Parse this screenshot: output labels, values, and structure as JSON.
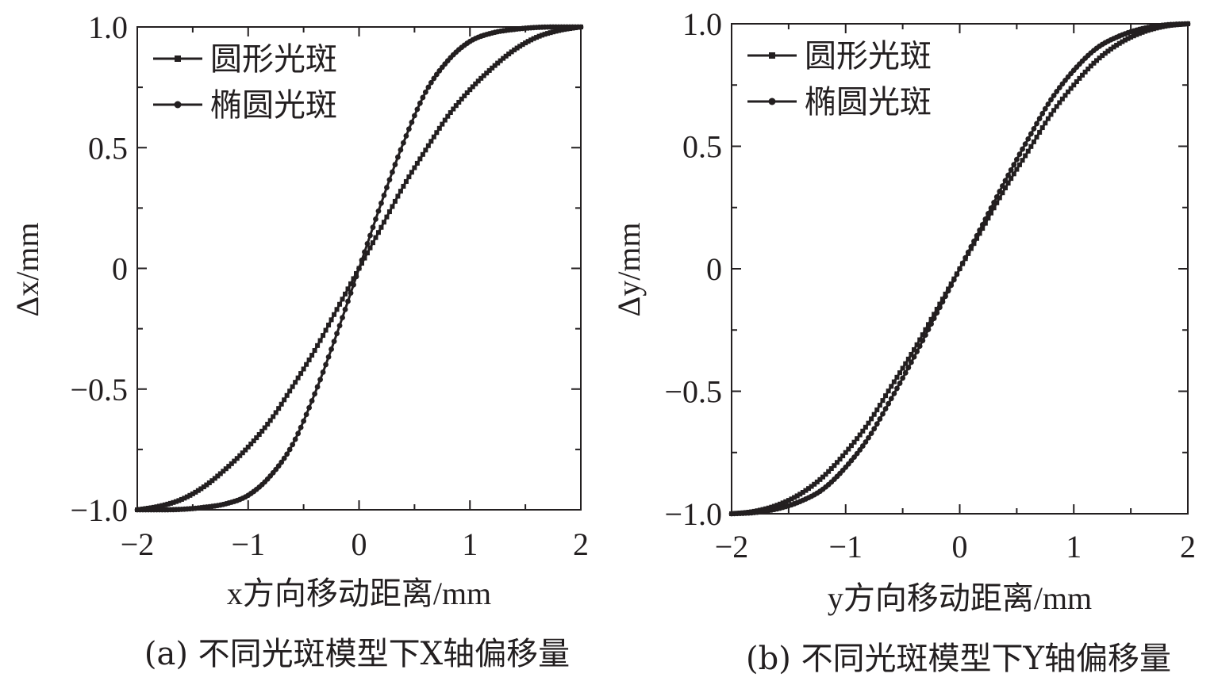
{
  "chart_data": [
    {
      "type": "line",
      "caption": "(a) 不同光斑模型下X轴偏移量",
      "xlabel": "x方向移动距离/mm",
      "ylabel": "Δx/mm",
      "xlim": [
        -2,
        2
      ],
      "ylim": [
        -1.0,
        1.0
      ],
      "xticks": [
        -2,
        -1,
        0,
        1,
        2
      ],
      "xtick_labels": [
        "−2",
        "−1",
        "0",
        "1",
        "2"
      ],
      "yticks": [
        -1.0,
        -0.5,
        0,
        0.5,
        1.0
      ],
      "ytick_labels": [
        "−1.0",
        "−0.5",
        "0",
        "0.5",
        "1.0"
      ],
      "grid": false,
      "legend_position": "top-left",
      "line_color": "#231f20",
      "series": [
        {
          "name": "圆形光斑",
          "marker": "square",
          "x": [
            -2.0,
            -1.8,
            -1.6,
            -1.4,
            -1.2,
            -1.0,
            -0.8,
            -0.6,
            -0.4,
            -0.2,
            0.0,
            0.2,
            0.4,
            0.6,
            0.8,
            1.0,
            1.2,
            1.4,
            1.6,
            1.8,
            2.0
          ],
          "values": [
            -1.0,
            -0.985,
            -0.957,
            -0.905,
            -0.83,
            -0.74,
            -0.63,
            -0.49,
            -0.34,
            -0.17,
            0.0,
            0.17,
            0.34,
            0.49,
            0.63,
            0.74,
            0.83,
            0.905,
            0.957,
            0.985,
            1.0
          ]
        },
        {
          "name": "椭圆光斑",
          "marker": "circle",
          "x": [
            -2.0,
            -1.8,
            -1.6,
            -1.4,
            -1.2,
            -1.0,
            -0.8,
            -0.6,
            -0.4,
            -0.2,
            0.0,
            0.2,
            0.4,
            0.6,
            0.8,
            1.0,
            1.2,
            1.4,
            1.6,
            1.8,
            2.0
          ],
          "values": [
            -1.0,
            -1.0,
            -0.998,
            -0.99,
            -0.975,
            -0.94,
            -0.86,
            -0.73,
            -0.52,
            -0.27,
            0.0,
            0.27,
            0.52,
            0.73,
            0.86,
            0.94,
            0.975,
            0.99,
            0.998,
            1.0,
            1.0
          ]
        }
      ]
    },
    {
      "type": "line",
      "caption": "(b) 不同光斑模型下Y轴偏移量",
      "xlabel": "y方向移动距离/mm",
      "ylabel": "Δy/mm",
      "xlim": [
        -2,
        2
      ],
      "ylim": [
        -1.0,
        1.0
      ],
      "xticks": [
        -2,
        -1,
        0,
        1,
        2
      ],
      "xtick_labels": [
        "−2",
        "−1",
        "0",
        "1",
        "2"
      ],
      "yticks": [
        -1.0,
        -0.5,
        0,
        0.5,
        1.0
      ],
      "ytick_labels": [
        "−1.0",
        "−0.5",
        "0",
        "0.5",
        "1.0"
      ],
      "grid": false,
      "legend_position": "top-left",
      "line_color": "#231f20",
      "series": [
        {
          "name": "圆形光斑",
          "marker": "square",
          "x": [
            -2.0,
            -1.8,
            -1.6,
            -1.4,
            -1.2,
            -1.0,
            -0.8,
            -0.6,
            -0.4,
            -0.2,
            0.0,
            0.2,
            0.4,
            0.6,
            0.8,
            1.0,
            1.2,
            1.4,
            1.6,
            1.8,
            2.0
          ],
          "values": [
            -1.0,
            -0.99,
            -0.965,
            -0.92,
            -0.85,
            -0.75,
            -0.63,
            -0.48,
            -0.33,
            -0.165,
            0.0,
            0.165,
            0.33,
            0.48,
            0.63,
            0.75,
            0.85,
            0.92,
            0.965,
            0.99,
            1.0
          ]
        },
        {
          "name": "椭圆光斑",
          "marker": "circle",
          "x": [
            -2.0,
            -1.8,
            -1.6,
            -1.4,
            -1.2,
            -1.0,
            -0.8,
            -0.6,
            -0.4,
            -0.2,
            0.0,
            0.2,
            0.4,
            0.6,
            0.8,
            1.0,
            1.2,
            1.4,
            1.6,
            1.8,
            2.0
          ],
          "values": [
            -1.0,
            -0.995,
            -0.98,
            -0.95,
            -0.9,
            -0.81,
            -0.69,
            -0.53,
            -0.36,
            -0.18,
            0.0,
            0.18,
            0.36,
            0.53,
            0.69,
            0.81,
            0.9,
            0.95,
            0.98,
            0.995,
            1.0
          ]
        }
      ]
    }
  ]
}
